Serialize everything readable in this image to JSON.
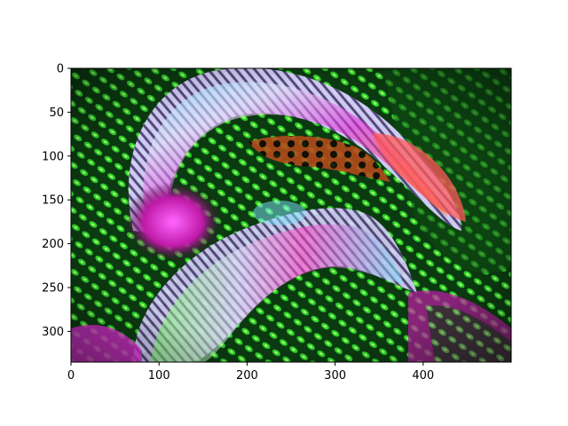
{
  "figure": {
    "background": "#ffffff",
    "image_extent": {
      "x": [
        0,
        500
      ],
      "y": [
        0,
        335
      ]
    },
    "y_inverted": true,
    "x_ticks": [
      "0",
      "100",
      "200",
      "300",
      "400"
    ],
    "x_tick_values": [
      0,
      100,
      200,
      300,
      400
    ],
    "y_ticks": [
      "0",
      "50",
      "100",
      "150",
      "200",
      "250",
      "300"
    ],
    "y_tick_values": [
      0,
      50,
      100,
      150,
      200,
      250,
      300
    ],
    "palette": {
      "green": "#2bd42b",
      "dark_green": "#0e4a12",
      "magenta": "#e22ad8",
      "pink": "#ff5aa0",
      "cyan": "#7fe8ff",
      "orange": "#ff8a2a",
      "white": "#f4f2ff",
      "black": "#0a0a0a"
    }
  }
}
